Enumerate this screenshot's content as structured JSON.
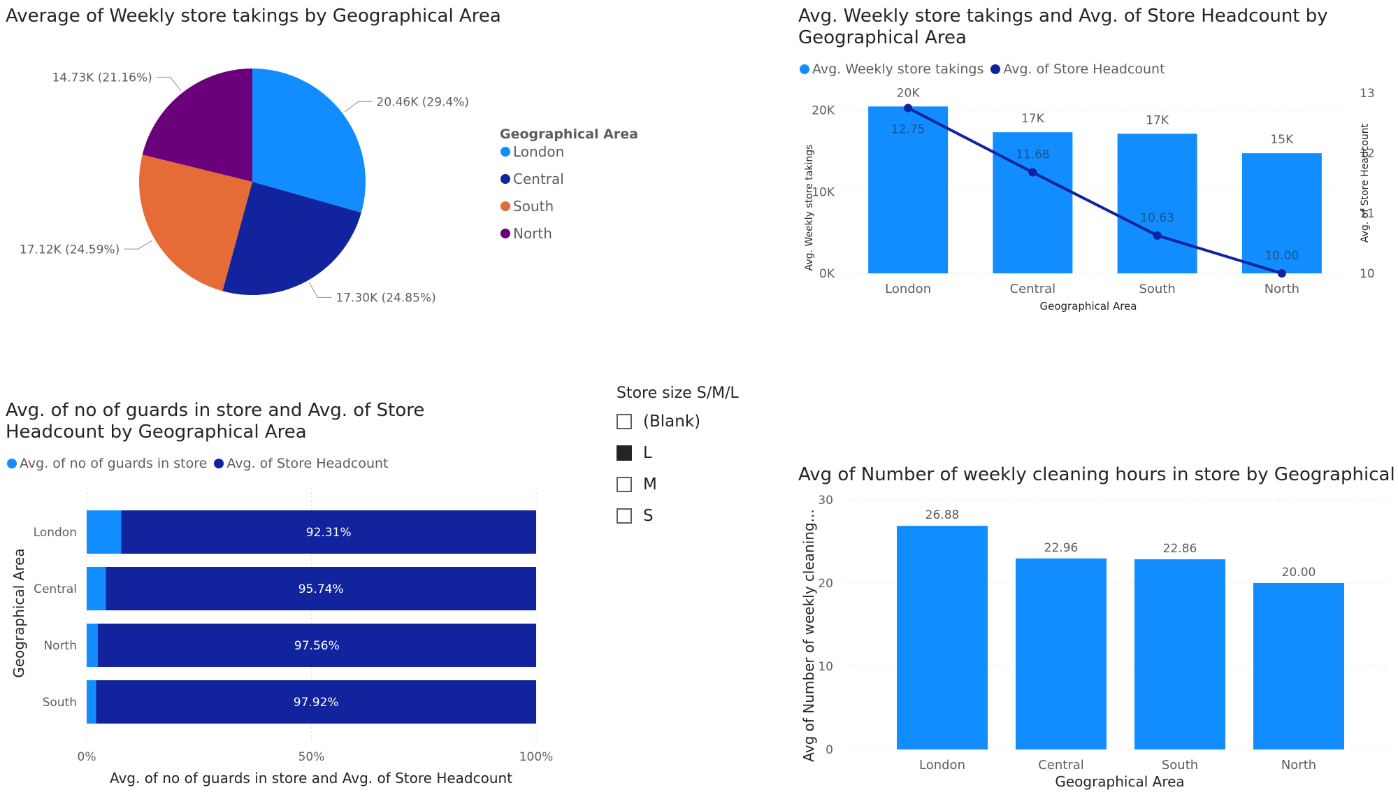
{
  "pie": {
    "title": "Average of Weekly store takings by Geographical Area",
    "legend_title": "Geographical Area",
    "chart_data": {
      "type": "pie",
      "title": "Average of Weekly store takings by Geographical Area",
      "slices": [
        {
          "name": "London",
          "value": 20.46,
          "label": "20.46K (29.4%)",
          "color": "#118DFF"
        },
        {
          "name": "Central",
          "value": 17.3,
          "label": "17.30K (24.85%)",
          "color": "#12239E"
        },
        {
          "name": "South",
          "value": 17.12,
          "label": "17.12K (24.59%)",
          "color": "#E66C37"
        },
        {
          "name": "North",
          "value": 14.73,
          "label": "14.73K (21.16%)",
          "color": "#6B007B"
        }
      ]
    }
  },
  "combo": {
    "title": "Avg. Weekly store takings and Avg. of Store Headcount by Geographical Area",
    "legend": [
      {
        "name": "Avg. Weekly store takings",
        "color": "#118DFF"
      },
      {
        "name": "Avg. of Store Headcount",
        "color": "#12239E"
      }
    ],
    "chart_data": {
      "type": "bar",
      "categories": [
        "London",
        "Central",
        "South",
        "North"
      ],
      "series": [
        {
          "name": "Avg. Weekly store takings",
          "values": [
            20460,
            17300,
            17120,
            14730
          ],
          "labels": [
            "20K",
            "17K",
            "17K",
            "15K"
          ],
          "axis": "left",
          "kind": "bar"
        },
        {
          "name": "Avg. of Store Headcount",
          "values": [
            12.75,
            11.68,
            10.63,
            10.0
          ],
          "labels": [
            "12.75",
            "11.68",
            "10.63",
            "10.00"
          ],
          "axis": "right",
          "kind": "line"
        }
      ],
      "xlabel": "Geographical Area",
      "ylabel": "Avg. Weekly store takings",
      "y2label": "Avg. of Store Headcount",
      "ylim": [
        0,
        24000
      ],
      "y2lim": [
        10,
        13
      ],
      "yticks": [
        "0K",
        "10K",
        "20K"
      ],
      "y2ticks": [
        "10",
        "11",
        "12",
        "13"
      ]
    }
  },
  "stacked": {
    "title": "Avg. of no of guards in store and Avg. of Store Headcount by Geographical Area",
    "legend": [
      {
        "name": "Avg. of no of guards in store",
        "color": "#118DFF"
      },
      {
        "name": "Avg. of Store Headcount",
        "color": "#12239E"
      }
    ],
    "chart_data": {
      "type": "bar",
      "orientation": "horizontal",
      "stacked": "100%",
      "categories": [
        "London",
        "Central",
        "North",
        "South"
      ],
      "series": [
        {
          "name": "Avg. of no of guards in store",
          "values": [
            7.69,
            4.26,
            2.44,
            2.08
          ]
        },
        {
          "name": "Avg. of Store Headcount",
          "values": [
            92.31,
            95.74,
            97.56,
            97.92
          ],
          "labels": [
            "92.31%",
            "95.74%",
            "97.56%",
            "97.92%"
          ]
        }
      ],
      "xlabel": "Avg. of no of guards in store and Avg. of Store Headcount",
      "ylabel": "Geographical Area",
      "xticks": [
        "0%",
        "50%",
        "100%"
      ]
    }
  },
  "slicer": {
    "title": "Store size S/M/L",
    "items": [
      {
        "label": "(Blank)",
        "checked": false
      },
      {
        "label": "L",
        "checked": true
      },
      {
        "label": "M",
        "checked": false
      },
      {
        "label": "S",
        "checked": false
      }
    ]
  },
  "cleaning": {
    "title": "Avg of Number of weekly cleaning hours in store by Geographical Area",
    "chart_data": {
      "type": "bar",
      "categories": [
        "London",
        "Central",
        "South",
        "North"
      ],
      "values": [
        26.88,
        22.96,
        22.86,
        20.0
      ],
      "labels": [
        "26.88",
        "22.96",
        "22.86",
        "20.00"
      ],
      "xlabel": "Geographical Area",
      "ylabel": "Avg of Number of weekly cleaning...",
      "ylim": [
        0,
        30
      ],
      "yticks": [
        "0",
        "10",
        "20",
        "30"
      ],
      "color": "#118DFF"
    }
  }
}
